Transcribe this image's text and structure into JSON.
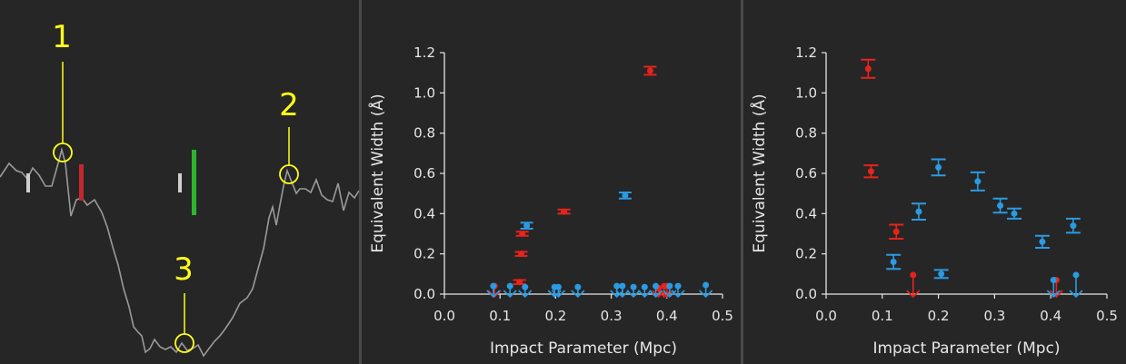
{
  "colors": {
    "background": "#262626",
    "axis": "#e6e6e6",
    "red": "#e8231b",
    "blue": "#2a9be3",
    "yellow": "#ffff1a",
    "spectrum": "#9a9a9a",
    "green": "#2db52d",
    "marker_red": "#c3282f",
    "marker_gray": "#cfcfcf"
  },
  "spectrum_panel": {
    "callouts": [
      {
        "label": "1"
      },
      {
        "label": "2"
      },
      {
        "label": "3"
      }
    ]
  },
  "chart_data": [
    {
      "type": "scatter",
      "xlabel": "Impact Parameter (Mpc)",
      "ylabel": "Equivalent Width (Å)",
      "xlim": [
        0,
        0.5
      ],
      "ylim": [
        0,
        1.2
      ],
      "xticks": [
        "0.0",
        "0.1",
        "0.2",
        "0.3",
        "0.4",
        "0.5"
      ],
      "yticks": [
        "0.0",
        "0.2",
        "0.4",
        "0.6",
        "0.8",
        "1.0",
        "1.2"
      ],
      "series": [
        {
          "color": "red",
          "detections": [
            {
              "x": 0.135,
              "y": 0.06,
              "err": 0.01
            },
            {
              "x": 0.138,
              "y": 0.2,
              "err": 0.01
            },
            {
              "x": 0.14,
              "y": 0.3,
              "err": 0.01
            },
            {
              "x": 0.215,
              "y": 0.41,
              "err": 0.01
            },
            {
              "x": 0.37,
              "y": 1.11,
              "err": 0.02
            }
          ],
          "upper_limits": [
            {
              "x": 0.09,
              "y": 0.04
            },
            {
              "x": 0.385,
              "y": 0.03
            },
            {
              "x": 0.395,
              "y": 0.04
            },
            {
              "x": 0.4,
              "y": 0.04
            }
          ]
        },
        {
          "color": "blue",
          "detections": [
            {
              "x": 0.148,
              "y": 0.34,
              "err": 0.015
            },
            {
              "x": 0.325,
              "y": 0.49,
              "err": 0.015
            }
          ],
          "upper_limits": [
            {
              "x": 0.088,
              "y": 0.04
            },
            {
              "x": 0.118,
              "y": 0.04
            },
            {
              "x": 0.145,
              "y": 0.035
            },
            {
              "x": 0.198,
              "y": 0.035
            },
            {
              "x": 0.205,
              "y": 0.035
            },
            {
              "x": 0.24,
              "y": 0.035
            },
            {
              "x": 0.31,
              "y": 0.04
            },
            {
              "x": 0.32,
              "y": 0.04
            },
            {
              "x": 0.34,
              "y": 0.035
            },
            {
              "x": 0.36,
              "y": 0.035
            },
            {
              "x": 0.38,
              "y": 0.04
            },
            {
              "x": 0.405,
              "y": 0.04
            },
            {
              "x": 0.42,
              "y": 0.04
            },
            {
              "x": 0.47,
              "y": 0.045
            }
          ]
        }
      ]
    },
    {
      "type": "scatter",
      "xlabel": "Impact Parameter (Mpc)",
      "ylabel": "Equivalent Width (Å)",
      "xlim": [
        0,
        0.5
      ],
      "ylim": [
        0,
        1.2
      ],
      "xticks": [
        "0.0",
        "0.1",
        "0.2",
        "0.3",
        "0.4",
        "0.5"
      ],
      "yticks": [
        "0.0",
        "0.2",
        "0.4",
        "0.6",
        "0.8",
        "1.0",
        "1.2"
      ],
      "series": [
        {
          "color": "red",
          "detections": [
            {
              "x": 0.075,
              "y": 1.12,
              "err": 0.045
            },
            {
              "x": 0.08,
              "y": 0.61,
              "err": 0.03
            },
            {
              "x": 0.125,
              "y": 0.31,
              "err": 0.035
            }
          ],
          "upper_limits": [
            {
              "x": 0.155,
              "y": 0.095
            },
            {
              "x": 0.41,
              "y": 0.07
            }
          ]
        },
        {
          "color": "blue",
          "detections": [
            {
              "x": 0.12,
              "y": 0.16,
              "err": 0.035
            },
            {
              "x": 0.165,
              "y": 0.41,
              "err": 0.04
            },
            {
              "x": 0.2,
              "y": 0.63,
              "err": 0.04
            },
            {
              "x": 0.205,
              "y": 0.1,
              "err": 0.02
            },
            {
              "x": 0.27,
              "y": 0.56,
              "err": 0.045
            },
            {
              "x": 0.31,
              "y": 0.44,
              "err": 0.035
            },
            {
              "x": 0.335,
              "y": 0.4,
              "err": 0.025
            },
            {
              "x": 0.385,
              "y": 0.26,
              "err": 0.03
            },
            {
              "x": 0.44,
              "y": 0.34,
              "err": 0.035
            }
          ],
          "upper_limits": [
            {
              "x": 0.405,
              "y": 0.07
            },
            {
              "x": 0.445,
              "y": 0.095
            }
          ]
        }
      ]
    }
  ]
}
